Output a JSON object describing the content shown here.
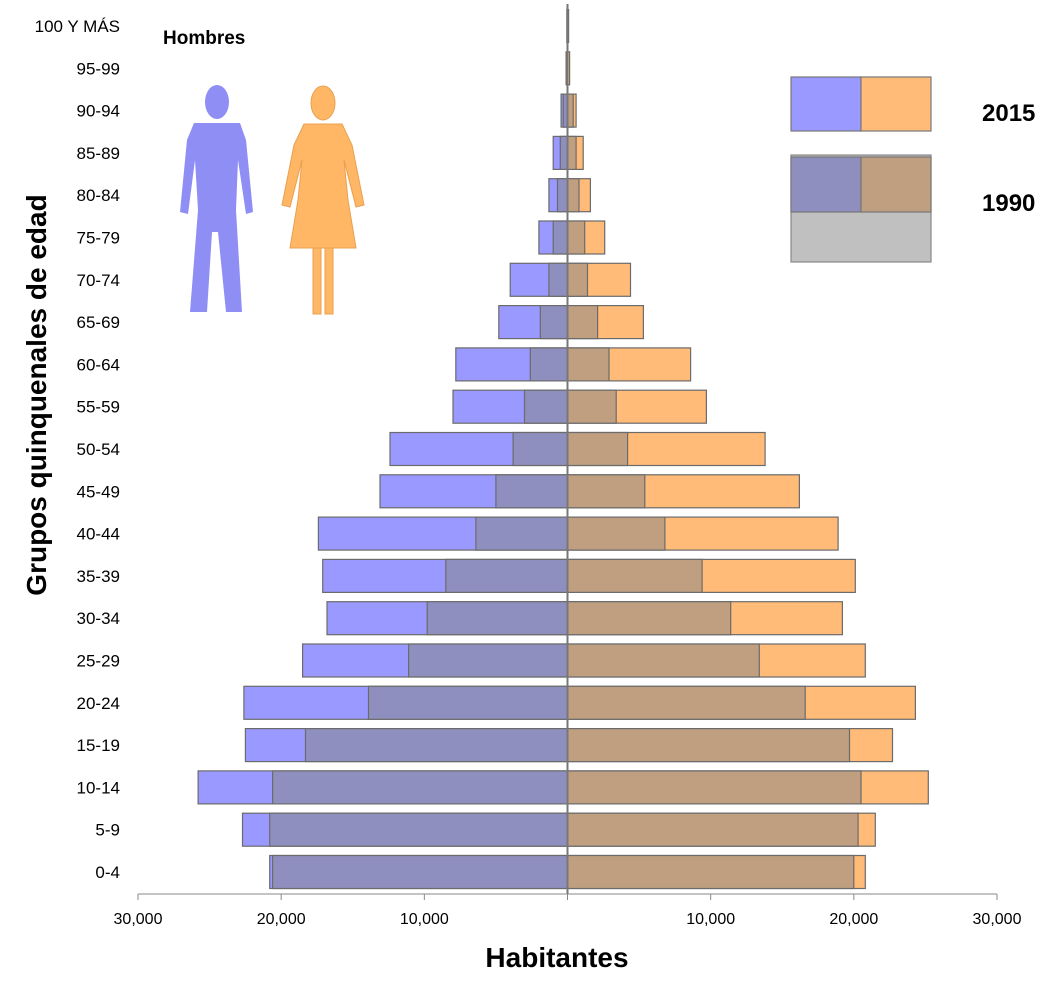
{
  "chart_data": {
    "type": "bar",
    "orientation": "horizontal",
    "subtype": "population-pyramid",
    "ylabel": "Grupos quinquenales de edad",
    "xlabel": "Habitantes",
    "xlim": [
      -30000,
      30000
    ],
    "x_ticks": [
      -30000,
      -20000,
      -10000,
      0,
      10000,
      20000,
      30000
    ],
    "x_tick_labels": [
      "30,000",
      "20,000",
      "10,000",
      "",
      "10,000",
      "20,000",
      "30,000"
    ],
    "men_label": "Hombres",
    "categories": [
      "0-4",
      "5-9",
      "10-14",
      "15-19",
      "20-24",
      "25-29",
      "30-34",
      "35-39",
      "40-44",
      "45-49",
      "50-54",
      "55-59",
      "60-64",
      "65-69",
      "70-74",
      "75-79",
      "80-84",
      "85-89",
      "90-94",
      "95-99",
      "100 Y MÁS"
    ],
    "legend_position": "top-right",
    "series": [
      {
        "name": "2015",
        "sex": "men",
        "color": "#9999ff",
        "values": [
          20800,
          22700,
          25800,
          22500,
          22600,
          18500,
          16800,
          17100,
          17400,
          13100,
          12400,
          8000,
          7800,
          4800,
          4000,
          2000,
          1300,
          1000,
          450,
          100,
          50
        ]
      },
      {
        "name": "2015",
        "sex": "women",
        "color": "#ffbb77",
        "values": [
          20800,
          21500,
          25200,
          22700,
          24300,
          20800,
          19200,
          20100,
          18900,
          16200,
          13800,
          9700,
          8600,
          5300,
          4400,
          2600,
          1600,
          1100,
          600,
          150,
          80
        ]
      },
      {
        "name": "1990",
        "sex": "men",
        "color": "#8f8fbf",
        "values": [
          20600,
          20800,
          20600,
          18300,
          13900,
          11100,
          9800,
          8500,
          6400,
          5000,
          3800,
          3000,
          2600,
          1900,
          1300,
          1000,
          700,
          500,
          300,
          0,
          0
        ]
      },
      {
        "name": "1990",
        "sex": "women",
        "color": "#bf9f80",
        "values": [
          20000,
          20300,
          20500,
          19700,
          16600,
          13400,
          11400,
          9400,
          6800,
          5400,
          4200,
          3400,
          2900,
          2100,
          1400,
          1200,
          800,
          600,
          400,
          0,
          0
        ]
      }
    ],
    "legend": {
      "entries": [
        {
          "label": "2015",
          "colors": [
            "#9999ff",
            "#ffbb77"
          ]
        },
        {
          "label": "1990",
          "colors": [
            "#8f8fbf",
            "#bf9f80"
          ]
        }
      ]
    },
    "icons": [
      "man-icon",
      "woman-icon"
    ]
  }
}
